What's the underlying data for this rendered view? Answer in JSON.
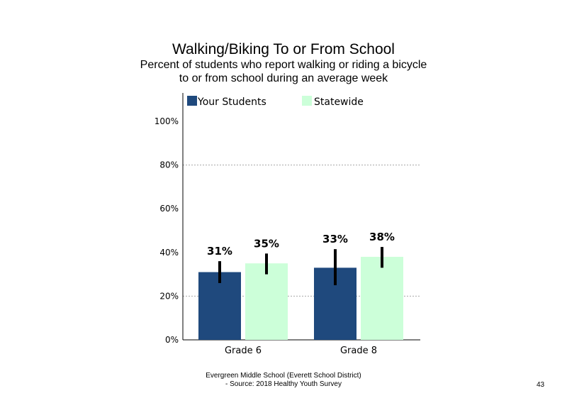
{
  "title": "Walking/Biking  To or From School",
  "subtitle": "Percent of students  who report walking  or riding a bicycle\nto or from school during an average  week",
  "footer": "Evergreen Middle  School (Everett School District)\n- Source: 2018 Healthy  Youth Survey",
  "page_number": "43",
  "colors": {
    "your_students": "#1F497D",
    "statewide": "#CCFFD9",
    "error_bar": "#000000",
    "axis": "#000000",
    "grid": "#A6A6A6"
  },
  "chart_data": {
    "type": "bar",
    "categories": [
      "Grade 6",
      "Grade 8"
    ],
    "series": [
      {
        "name": "Your Students",
        "values": [
          31,
          33
        ],
        "labels": [
          "31%",
          "33%"
        ],
        "error_low": [
          26,
          25
        ],
        "error_high": [
          36,
          41.5
        ]
      },
      {
        "name": "Statewide",
        "values": [
          35,
          38
        ],
        "labels": [
          "35%",
          "38%"
        ],
        "error_low": [
          30,
          33
        ],
        "error_high": [
          39.5,
          42.5
        ]
      }
    ],
    "yticks": [
      "0%",
      "20%",
      "40%",
      "60%",
      "80%",
      "100%"
    ],
    "ylim": [
      0,
      100
    ],
    "grid": "dotted horizontal at 20% and 80%",
    "legend": "top-left"
  }
}
